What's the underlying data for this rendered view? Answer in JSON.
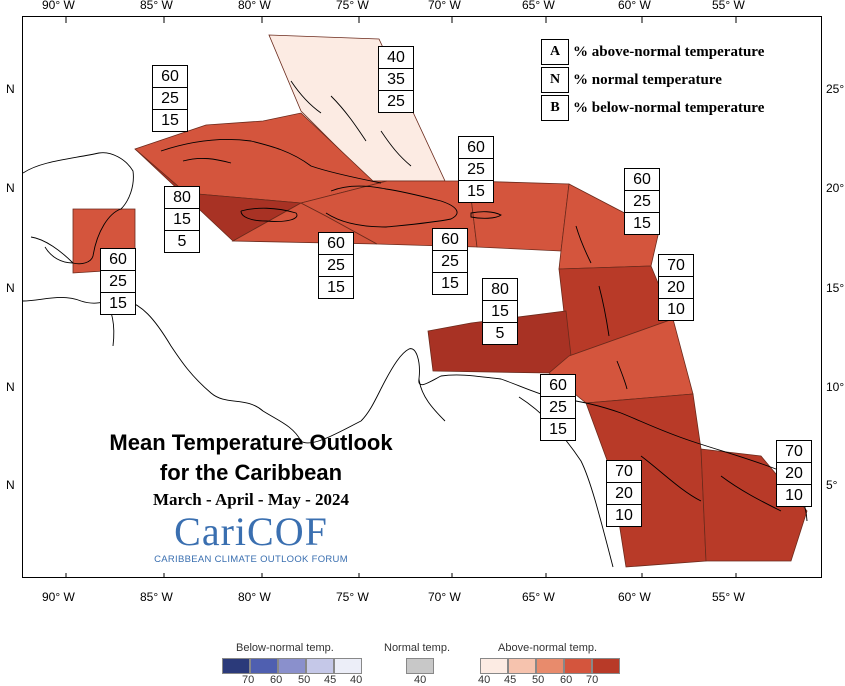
{
  "map": {
    "lon_labels": [
      "90° W",
      "85° W",
      "80° W",
      "75° W",
      "70° W",
      "65° W",
      "60° W",
      "55° W"
    ],
    "lat_labels_right": [
      "25°",
      "20°",
      "15°",
      "10°",
      "5°"
    ],
    "lat_labels_left": [
      "N",
      "N",
      "N",
      "N",
      "N"
    ],
    "colors": {
      "above_40": "#fcebe3",
      "above_60": "#d4553d",
      "above_70": "#b83a28",
      "above_80": "#a83224"
    },
    "regions": [
      {
        "name": "bahamas",
        "class": "above_40"
      },
      {
        "name": "cuba",
        "class": "above_60"
      },
      {
        "name": "cayman-jamaica-west",
        "class": "above_80"
      },
      {
        "name": "jamaica",
        "class": "above_60"
      },
      {
        "name": "hispaniola",
        "class": "above_60"
      },
      {
        "name": "puerto-rico",
        "class": "above_60"
      },
      {
        "name": "leeward",
        "class": "above_60"
      },
      {
        "name": "windward",
        "class": "above_70"
      },
      {
        "name": "abc-islands",
        "class": "above_80"
      },
      {
        "name": "trinidad-tobago",
        "class": "above_60"
      },
      {
        "name": "guianas",
        "class": "above_70"
      },
      {
        "name": "suriname-french-guiana",
        "class": "above_70"
      },
      {
        "name": "belize",
        "class": "above_60"
      }
    ],
    "probability_boxes": [
      {
        "region": "bahamas",
        "values": [
          "40",
          "35",
          "25"
        ]
      },
      {
        "region": "cuba",
        "values": [
          "60",
          "25",
          "15"
        ]
      },
      {
        "region": "cayman-jamaica-west",
        "values": [
          "80",
          "15",
          "5"
        ]
      },
      {
        "region": "belize",
        "values": [
          "60",
          "25",
          "15"
        ]
      },
      {
        "region": "jamaica",
        "values": [
          "60",
          "25",
          "15"
        ]
      },
      {
        "region": "hispaniola",
        "values": [
          "60",
          "25",
          "15"
        ]
      },
      {
        "region": "puerto-rico",
        "values": [
          "60",
          "25",
          "15"
        ]
      },
      {
        "region": "leeward",
        "values": [
          "60",
          "25",
          "15"
        ]
      },
      {
        "region": "windward",
        "values": [
          "70",
          "20",
          "10"
        ]
      },
      {
        "region": "abc-islands",
        "values": [
          "80",
          "15",
          "5"
        ]
      },
      {
        "region": "trinidad-tobago",
        "values": [
          "60",
          "25",
          "15"
        ]
      },
      {
        "region": "guianas",
        "values": [
          "70",
          "20",
          "10"
        ]
      },
      {
        "region": "suriname-french-guiana",
        "values": [
          "70",
          "20",
          "10"
        ]
      }
    ]
  },
  "legend_key": [
    {
      "letter": "A",
      "text": "% above-normal temperature"
    },
    {
      "letter": "N",
      "text": "% normal temperature"
    },
    {
      "letter": "B",
      "text": "% below-normal temperature"
    }
  ],
  "title": {
    "line1": "Mean Temperature Outlook",
    "line2": "for the Caribbean",
    "season": "March - April - May - 2024"
  },
  "logo": {
    "word": "CariCOF",
    "subtitle": "CARIBBEAN CLIMATE OUTLOOK FORUM"
  },
  "colorbar": {
    "below": {
      "title": "Below-normal temp.",
      "colors": [
        "#2b3a7a",
        "#4f5fb0",
        "#8a90cc",
        "#c5c8e8",
        "#eceef8"
      ],
      "ticks": [
        "70",
        "60",
        "50",
        "45",
        "40"
      ]
    },
    "normal": {
      "title": "Normal temp.",
      "colors": [
        "#c8c8c8"
      ],
      "ticks": [
        "40"
      ]
    },
    "above": {
      "title": "Above-normal temp.",
      "colors": [
        "#fcebe3",
        "#f6c3ae",
        "#e88b6c",
        "#d4553d",
        "#b83a28"
      ],
      "ticks": [
        "40",
        "45",
        "50",
        "60",
        "70"
      ]
    }
  }
}
